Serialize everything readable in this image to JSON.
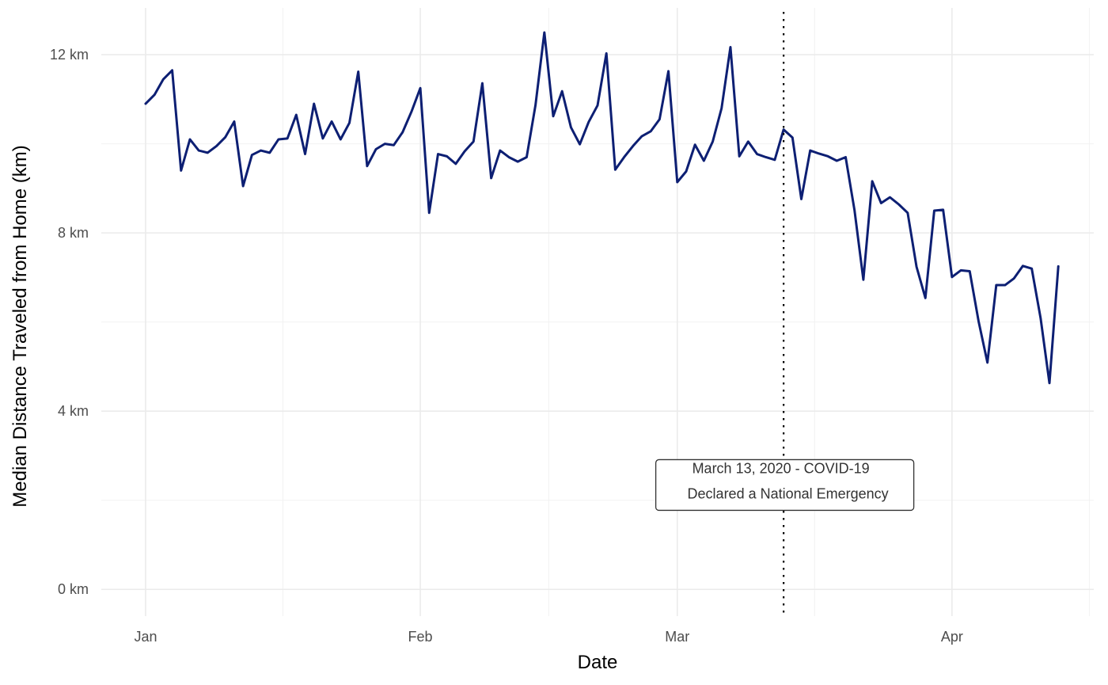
{
  "chart_data": {
    "type": "line",
    "title": "",
    "xlabel": "Date",
    "ylabel": "Median Distance Traveled from Home (km)",
    "x_start": "2020-01-01",
    "x_ticks": [
      {
        "date": "2020-01-01",
        "label": "Jan"
      },
      {
        "date": "2020-02-01",
        "label": "Feb"
      },
      {
        "date": "2020-03-01",
        "label": "Mar"
      },
      {
        "date": "2020-04-01",
        "label": "Apr"
      }
    ],
    "y_ticks": [
      {
        "value": 0,
        "label": "0 km"
      },
      {
        "value": 4,
        "label": "4 km"
      },
      {
        "value": 8,
        "label": "8 km"
      },
      {
        "value": 12,
        "label": "12 km"
      }
    ],
    "ylim": [
      -0.6,
      13.05
    ],
    "xlim": [
      "2019-12-27",
      "2020-04-17"
    ],
    "grid": true,
    "line_color": "#0d1f73",
    "series": [
      {
        "name": "",
        "x": [
          "2020-01-01",
          "2020-01-02",
          "2020-01-03",
          "2020-01-04",
          "2020-01-05",
          "2020-01-06",
          "2020-01-07",
          "2020-01-08",
          "2020-01-09",
          "2020-01-10",
          "2020-01-11",
          "2020-01-12",
          "2020-01-13",
          "2020-01-14",
          "2020-01-15",
          "2020-01-16",
          "2020-01-17",
          "2020-01-18",
          "2020-01-19",
          "2020-01-20",
          "2020-01-21",
          "2020-01-22",
          "2020-01-23",
          "2020-01-24",
          "2020-01-25",
          "2020-01-26",
          "2020-01-27",
          "2020-01-28",
          "2020-01-29",
          "2020-01-30",
          "2020-01-31",
          "2020-02-01",
          "2020-02-02",
          "2020-02-03",
          "2020-02-04",
          "2020-02-05",
          "2020-02-06",
          "2020-02-07",
          "2020-02-08",
          "2020-02-09",
          "2020-02-10",
          "2020-02-11",
          "2020-02-12",
          "2020-02-13",
          "2020-02-14",
          "2020-02-15",
          "2020-02-16",
          "2020-02-17",
          "2020-02-18",
          "2020-02-19",
          "2020-02-20",
          "2020-02-21",
          "2020-02-22",
          "2020-02-23",
          "2020-02-24",
          "2020-02-25",
          "2020-02-26",
          "2020-02-27",
          "2020-02-28",
          "2020-02-29",
          "2020-03-01",
          "2020-03-02",
          "2020-03-03",
          "2020-03-04",
          "2020-03-05",
          "2020-03-06",
          "2020-03-07",
          "2020-03-08",
          "2020-03-09",
          "2020-03-10",
          "2020-03-11",
          "2020-03-12",
          "2020-03-13",
          "2020-03-14",
          "2020-03-15",
          "2020-03-16",
          "2020-03-17",
          "2020-03-18",
          "2020-03-19",
          "2020-03-20",
          "2020-03-21",
          "2020-03-22",
          "2020-03-23",
          "2020-03-24",
          "2020-03-25",
          "2020-03-26",
          "2020-03-27",
          "2020-03-28",
          "2020-03-29",
          "2020-03-30",
          "2020-03-31",
          "2020-04-01",
          "2020-04-02",
          "2020-04-03",
          "2020-04-04",
          "2020-04-05",
          "2020-04-06",
          "2020-04-07",
          "2020-04-08",
          "2020-04-09",
          "2020-04-10",
          "2020-04-11",
          "2020-04-12",
          "2020-04-13"
        ],
        "values": [
          10.9,
          11.1,
          11.45,
          11.65,
          9.4,
          10.1,
          9.85,
          9.8,
          9.95,
          10.15,
          10.5,
          9.05,
          9.75,
          9.85,
          9.8,
          10.1,
          10.12,
          10.65,
          9.77,
          10.9,
          10.12,
          10.5,
          10.1,
          10.47,
          11.62,
          9.5,
          9.88,
          10.0,
          9.97,
          10.26,
          10.72,
          11.25,
          8.45,
          9.77,
          9.72,
          9.55,
          9.83,
          10.05,
          11.36,
          9.23,
          9.85,
          9.7,
          9.6,
          9.7,
          10.87,
          12.5,
          10.62,
          11.18,
          10.37,
          9.99,
          10.49,
          10.86,
          12.03,
          9.42,
          9.7,
          9.95,
          10.17,
          10.28,
          10.55,
          11.63,
          9.14,
          9.38,
          9.98,
          9.62,
          10.05,
          10.8,
          12.17,
          9.72,
          10.05,
          9.77,
          9.7,
          9.64,
          10.32,
          10.14,
          8.76,
          9.85,
          9.78,
          9.72,
          9.62,
          9.7,
          8.51,
          6.95,
          9.16,
          8.67,
          8.8,
          8.64,
          8.45,
          7.24,
          6.54,
          8.5,
          8.52,
          7.01,
          7.16,
          7.14,
          6.02,
          5.09,
          6.83,
          6.83,
          6.98,
          7.26,
          7.2,
          6.09,
          4.63,
          7.25
        ]
      }
    ],
    "annotations": [
      {
        "type": "vline",
        "date": "2020-03-13",
        "style": "dotted",
        "label_lines": [
          "March 13, 2020 - COVID-19",
          "Declared a National Emergency"
        ],
        "label_y": 2.2
      }
    ]
  }
}
